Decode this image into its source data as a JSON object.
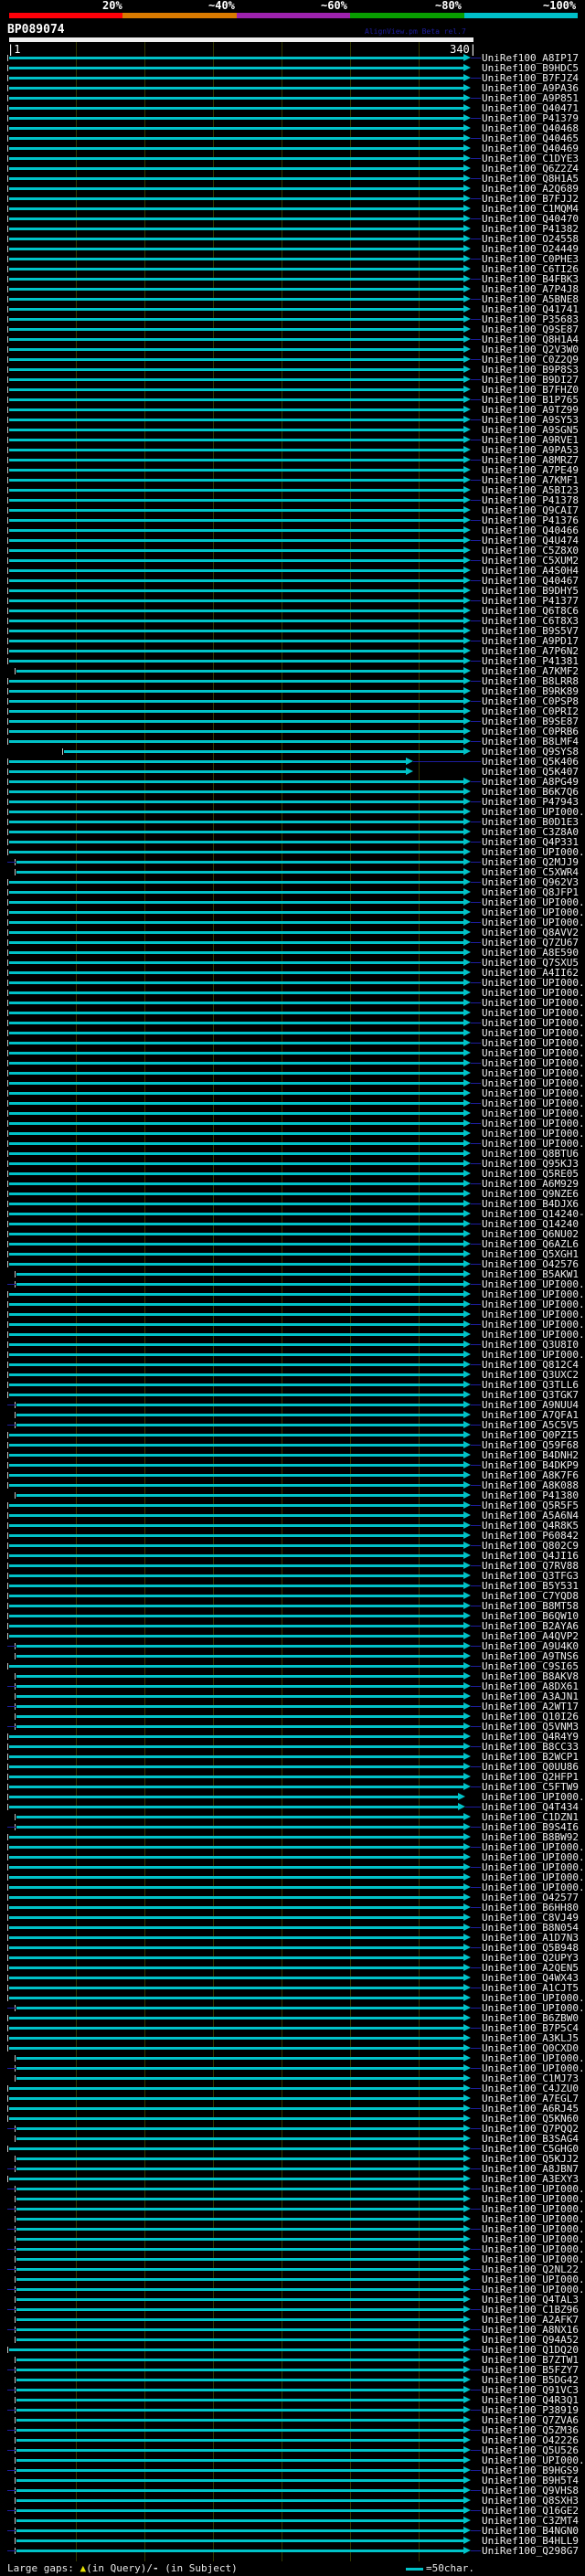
{
  "header": {
    "scale_labels": [
      "20%",
      "~40%",
      "~60%",
      "~80%",
      "~100%"
    ],
    "scale_colors": [
      "#fd0009",
      "#d97a00",
      "#9d22ad",
      "#089e00",
      "#00bfc8"
    ],
    "query_id": "BP089074",
    "watermark": "AlignView.pm Beta rel.7",
    "ruler_start_label": "|1",
    "ruler_end_label": "340|"
  },
  "footer": {
    "legend_prefix": "Large gaps: ",
    "legend_triangle": "▲",
    "legend_query": "(in Query)/",
    "legend_dash": "-",
    "legend_subject": " (in Subject)",
    "char_label": "=50char."
  },
  "colors": {
    "line": "#00c2c8",
    "connector": "#1d1d9e",
    "grid": "#343900",
    "tick": "#c9c9c9",
    "label": "#ededed",
    "triangle_yellow": "#e8e400"
  },
  "plot": {
    "query_range": [
      1,
      340
    ],
    "identity_bin_of_all_hits": "~100%",
    "hit_count": 249
  },
  "row_prefix": "UniRef100_",
  "rows": [
    "A8IP17",
    "B9HDC5",
    "B7FJZ4",
    "A9PA36",
    "A9P851",
    "Q40471",
    "P41379",
    "Q40468",
    "Q40465",
    "Q40469",
    "C1DYE3",
    "Q6Z2Z4",
    "Q8H1A5",
    "A2Q689",
    "B7FJJ2",
    "C1MQM4",
    "Q40470",
    "P41382",
    "O24558",
    "O24449",
    "C0PHE3",
    "C6TI26",
    "B4FBK3",
    "A7P4J8",
    "A5BNE8",
    "Q41741",
    "P35683",
    "Q9SE87",
    "Q8H1A4",
    "Q2V3W0",
    "C0Z2Q9",
    "B9P8S3",
    "B9DI27",
    "B7FHZ0",
    "B1P765",
    "A9TZ99",
    "A9SY53",
    "A9SGN5",
    "A9RVE1",
    "A9PA53",
    "A8MRZ7",
    "A7PE49",
    "A7KMF1",
    "A5BI23",
    "P41378",
    "Q9CAI7",
    "P41376",
    "Q40466",
    "Q4U474",
    "C5Z8X0",
    "C5XUM2",
    "A4S0H4",
    "Q40467",
    "B9DHY5",
    "P41377",
    "Q6T8C6",
    "C6T8X3",
    "B9S5V7",
    "A9PD17",
    "A7P6N2",
    "P41381",
    "A7KMF2",
    "B8LRR8",
    "B9RK89",
    "C0PSP8",
    "C0PRI2",
    "B9SE87",
    "C0PRB6",
    "B8LMF4",
    "Q9SYS8",
    "Q5K406",
    "Q5K407",
    "A8PG49",
    "B6K7Q6",
    "P47943",
    "UPI000..",
    "B0D1E3",
    "C3Z8A0",
    "Q4P331",
    "UPI000..",
    "Q2MJJ9",
    "C5XWR4",
    "Q962V3",
    "Q8JFP1",
    "UPI000..",
    "UPI000..",
    "UPI000..",
    "Q8AVV2",
    "Q7ZU67",
    "A8E590",
    "Q7SXU5",
    "A4II62",
    "UPI000..",
    "UPI000..",
    "UPI000..",
    "UPI000..",
    "UPI000..",
    "UPI000..",
    "UPI000..",
    "UPI000..",
    "UPI000..",
    "UPI000..",
    "UPI000..",
    "UPI000..",
    "UPI000..",
    "UPI000..",
    "UPI000..",
    "UPI000..",
    "UPI000..",
    "Q8BTU6",
    "Q95KJ3",
    "Q5RE05",
    "A6M929",
    "Q9NZE6",
    "B4DJX6",
    "Q14240-2",
    "Q14240",
    "Q6NU02",
    "Q6AZL6",
    "Q5XGH1",
    "O42576",
    "B5AKW1",
    "UPI000..",
    "UPI000..",
    "UPI000..",
    "UPI000..",
    "UPI000..",
    "UPI000..",
    "Q3U8I0",
    "UPI000..",
    "Q812C4",
    "Q3UXC2",
    "Q3TLL6",
    "Q3TGK7",
    "A9NUU4",
    "A7QFA1",
    "A5C5V5",
    "Q0PZI5",
    "Q59F68",
    "B4DNH2",
    "B4DKP9",
    "A8K7F6",
    "A8K088",
    "P41380",
    "Q5R5F5",
    "A5A6N4",
    "Q4R8K5",
    "P60842",
    "Q802C9",
    "Q4JI16",
    "Q7RV88",
    "Q3TFG3",
    "B5Y531",
    "C7YQD8",
    "B8MT58",
    "B6QW10",
    "B2AYA6",
    "A4QVP2",
    "A9U4K0",
    "A9TNS6",
    "C9SI65",
    "B8AKV8",
    "A8DX61",
    "A3AJN1",
    "A2WT17",
    "Q10I26",
    "Q5VNM3",
    "Q4R4Y9",
    "B8CC33",
    "B2WCP1",
    "Q0UU86",
    "Q2HFP1",
    "C5FTW9",
    "UPI000..",
    "Q4T434",
    "C1DZN1",
    "B9S4I6",
    "B8BW92",
    "UPI000..",
    "UPI000..",
    "UPI000..",
    "UPI000..",
    "UPI000..",
    "O42577",
    "B6HH80",
    "C8VJ49",
    "B8N054",
    "A1D7N3",
    "Q5B948",
    "Q2UPY3",
    "A2QEN5",
    "Q4WX43",
    "A1CJT5",
    "UPI000..",
    "UPI000..",
    "B6ZBW0",
    "B7P5C4",
    "A3KLJ5",
    "Q0CXD0",
    "UPI000..",
    "UPI000..",
    "C1MJ73",
    "C4JZU0",
    "A7EGL7",
    "A6RJ45",
    "Q5KN60",
    "Q7PQQ2",
    "B3SAG4",
    "C5GHG0",
    "Q5KJJ2",
    "A8JBN7",
    "A3EXY3",
    "UPI000..",
    "UPI000..",
    "UPI000..",
    "UPI000..",
    "UPI000..",
    "UPI000..",
    "UPI000..",
    "UPI000..",
    "Q2NL22",
    "UPI000..",
    "UPI000..",
    "Q4TAL3",
    "C1BZ96",
    "A2AFK7",
    "A8NX16",
    "Q94A52",
    "Q1DQ20",
    "B7ZTW1",
    "B5FZY7",
    "B5DG42",
    "Q91VC3",
    "Q4R3Q1",
    "P38919",
    "Q7ZVA6",
    "Q5ZM36",
    "O42226",
    "Q5U526",
    "UPI000..",
    "B9HGS9",
    "B9H5T4",
    "Q9VHS8",
    "Q8SXH3",
    "Q16GE2",
    "C3ZMT4",
    "B4NGN0",
    "B4HLL9",
    "Q298G7"
  ],
  "indent_rows": [
    62,
    81,
    82,
    122,
    123,
    135,
    136,
    137,
    144,
    159,
    160,
    162,
    163,
    164,
    165,
    166,
    167,
    176,
    177,
    195,
    200,
    201,
    202,
    207,
    208,
    210,
    211,
    213,
    214,
    215,
    216,
    217,
    218,
    219,
    220,
    221,
    222,
    223,
    224,
    225,
    226,
    227,
    228,
    230,
    231,
    232,
    233,
    234,
    235,
    236,
    237,
    238,
    239,
    240,
    241,
    242,
    243,
    244,
    245,
    246,
    247,
    248,
    249
  ],
  "custom_start": {
    "70": 70
  },
  "short_ends": {
    "71": 449,
    "72": 449,
    "174": 506,
    "175": 506
  }
}
